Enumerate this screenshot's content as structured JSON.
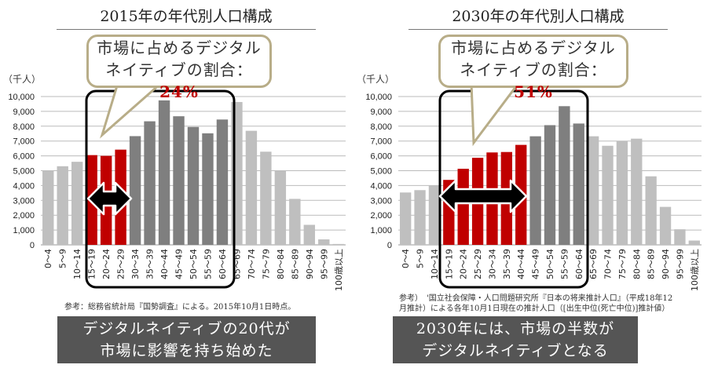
{
  "left": {
    "title": "2015年の年代別人口構成",
    "unit": "（千人）",
    "bubble_line1": "市場に占めるデジタル",
    "bubble_line2": "ネイティブの割合：",
    "bubble_pct": "24%",
    "note": "参考：総務省統計局『国勢調査』による。2015年10月1日時点。",
    "message_line1": "デジタルネイティブの20代が",
    "message_line2": "市場に影響を持ち始めた"
  },
  "right": {
    "title": "2030年の年代別人口構成",
    "unit": "（千人）",
    "bubble_line1": "市場に占めるデジタル",
    "bubble_line2": "ネイティブの割合：",
    "bubble_pct": "51%",
    "note_line1": "参考）　'国立社会保障・人口問題研究所『日本の将来推計人口』（平成18年12",
    "note_line2": "月推計）による各年10月1日現在の推計人口（[出生中位(死亡中位)]推計値）",
    "message_line1": "2030年には、市場の半数が",
    "message_line2": "デジタルネイティブとなる"
  },
  "colors": {
    "digital_native": "#c00000",
    "working": "#7f7f7f",
    "other": "#bfbfbf",
    "accent": "#c00000"
  },
  "chart_data": [
    {
      "type": "bar",
      "title": "2015年の年代別人口構成",
      "ylabel": "（千人）",
      "ylim": [
        0,
        10000
      ],
      "yticks": [
        "0",
        "1,000",
        "2,000",
        "3,000",
        "4,000",
        "5,000",
        "6,000",
        "7,000",
        "8,000",
        "9,000",
        "10,000"
      ],
      "grid": true,
      "categories": [
        "0～4",
        "5～9",
        "10～14",
        "15～19",
        "20～24",
        "25～29",
        "30～34",
        "35～39",
        "40～44",
        "45～49",
        "50～54",
        "55～59",
        "60～64",
        "65～69",
        "70～74",
        "75～79",
        "80～84",
        "85～89",
        "90～94",
        "95～99",
        "100歳以上"
      ],
      "values": [
        5000,
        5300,
        5600,
        6050,
        6000,
        6420,
        7330,
        8330,
        9740,
        8670,
        7950,
        7520,
        8450,
        9630,
        7690,
        6280,
        5000,
        3100,
        1350,
        370,
        60
      ],
      "groups": [
        "other",
        "other",
        "other",
        "digital_native",
        "digital_native",
        "digital_native",
        "working",
        "working",
        "working",
        "working",
        "working",
        "working",
        "working",
        "other",
        "other",
        "other",
        "other",
        "other",
        "other",
        "other",
        "other"
      ],
      "annotations": [
        "市場に占めるデジタルネイティブの割合：24%"
      ]
    },
    {
      "type": "bar",
      "title": "2030年の年代別人口構成",
      "ylabel": "（千人）",
      "ylim": [
        0,
        10000
      ],
      "yticks": [
        "0",
        "1,000",
        "2,000",
        "3,000",
        "4,000",
        "5,000",
        "6,000",
        "7,000",
        "8,000",
        "9,000",
        "10,000"
      ],
      "grid": true,
      "categories": [
        "0～4",
        "5～9",
        "10～14",
        "15～19",
        "20～24",
        "25～29",
        "30～34",
        "35～39",
        "40～44",
        "45～49",
        "50～54",
        "55～59",
        "60～64",
        "65～69",
        "70～74",
        "75～79",
        "80～84",
        "85～89",
        "90～94",
        "95～99",
        "100歳以上"
      ],
      "values": [
        3530,
        3690,
        4000,
        4380,
        5130,
        5870,
        6230,
        6260,
        6740,
        7320,
        8070,
        9350,
        8180,
        7320,
        6680,
        7010,
        7160,
        4620,
        2560,
        1050,
        290
      ],
      "groups": [
        "other",
        "other",
        "other",
        "digital_native",
        "digital_native",
        "digital_native",
        "digital_native",
        "digital_native",
        "digital_native",
        "working",
        "working",
        "working",
        "working",
        "other",
        "other",
        "other",
        "other",
        "other",
        "other",
        "other",
        "other"
      ],
      "annotations": [
        "市場に占めるデジタルネイティブの割合：51%"
      ]
    }
  ]
}
